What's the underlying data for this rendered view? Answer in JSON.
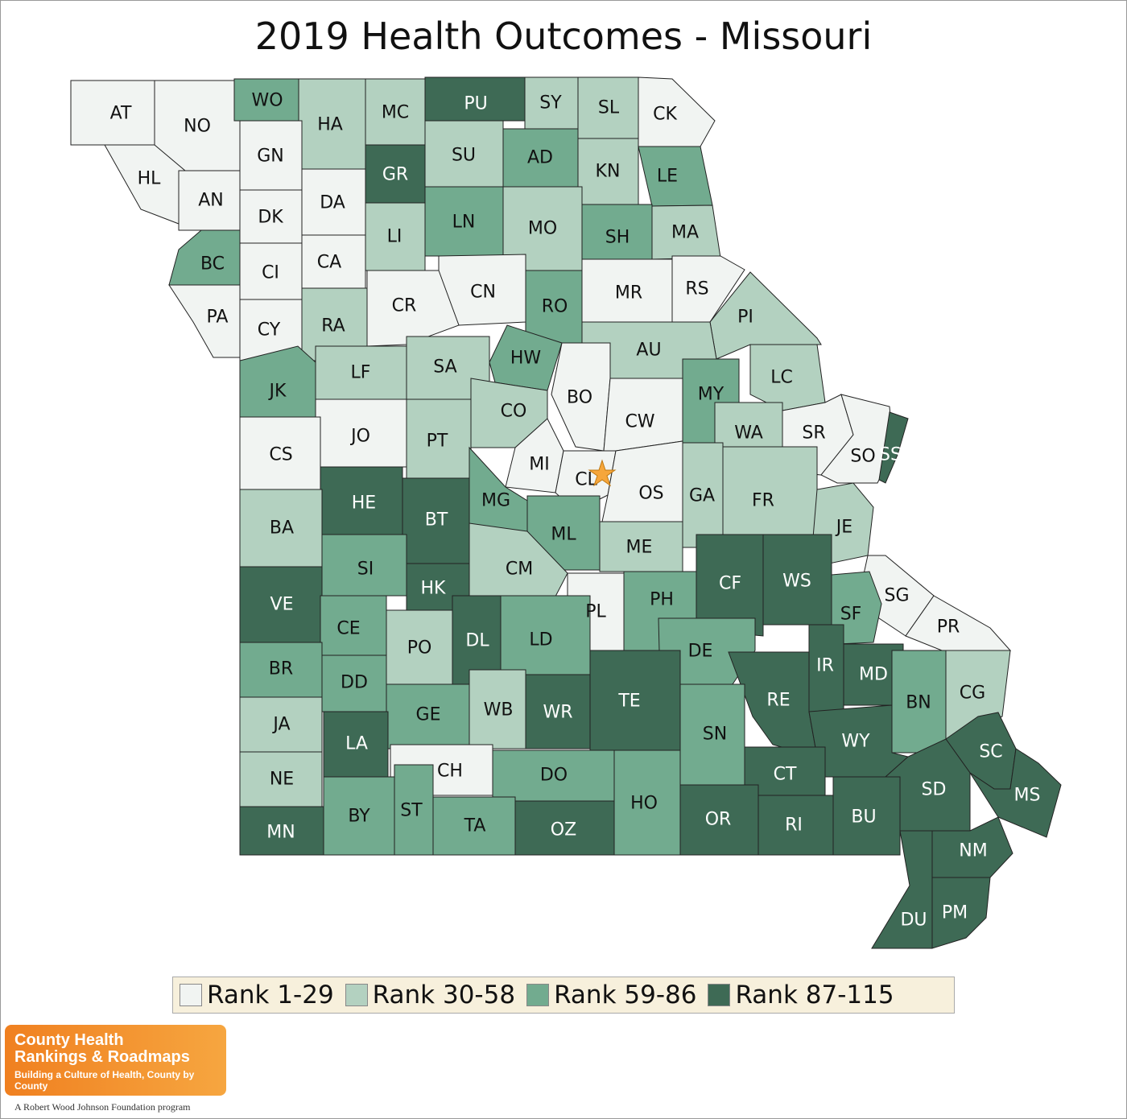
{
  "title": "2019 Health Outcomes - Missouri",
  "colors": {
    "rank_1_29": "#f1f4f2",
    "rank_30_58": "#b3d1c0",
    "rank_59_86": "#72ab8f",
    "rank_87_115": "#3e6a55",
    "star": "#f6a63b",
    "legend_bg": "#f7f0dc",
    "logo_orange": "#f08020"
  },
  "legend": [
    {
      "label": "Rank 1-29",
      "tier": 1
    },
    {
      "label": "Rank 30-58",
      "tier": 2
    },
    {
      "label": "Rank 59-86",
      "tier": 3
    },
    {
      "label": "Rank 87-115",
      "tier": 4
    }
  ],
  "map_data": {
    "region": "Missouri",
    "highlight_marker": "star-icon",
    "highlight_county": "CL",
    "counties": [
      {
        "code": "AT",
        "tier": 1
      },
      {
        "code": "NO",
        "tier": 1
      },
      {
        "code": "WO",
        "tier": 3
      },
      {
        "code": "HA",
        "tier": 2
      },
      {
        "code": "MC",
        "tier": 2
      },
      {
        "code": "PU",
        "tier": 4
      },
      {
        "code": "SY",
        "tier": 2
      },
      {
        "code": "SL",
        "tier": 2
      },
      {
        "code": "CK",
        "tier": 1
      },
      {
        "code": "HL",
        "tier": 1
      },
      {
        "code": "GN",
        "tier": 1
      },
      {
        "code": "GR",
        "tier": 4
      },
      {
        "code": "SU",
        "tier": 2
      },
      {
        "code": "AD",
        "tier": 3
      },
      {
        "code": "KN",
        "tier": 2
      },
      {
        "code": "LE",
        "tier": 3
      },
      {
        "code": "AN",
        "tier": 1
      },
      {
        "code": "DK",
        "tier": 1
      },
      {
        "code": "DA",
        "tier": 1
      },
      {
        "code": "LI",
        "tier": 2
      },
      {
        "code": "LN",
        "tier": 3
      },
      {
        "code": "MO",
        "tier": 2
      },
      {
        "code": "SH",
        "tier": 3
      },
      {
        "code": "MA",
        "tier": 2
      },
      {
        "code": "BC",
        "tier": 3
      },
      {
        "code": "CI",
        "tier": 1
      },
      {
        "code": "CA",
        "tier": 1
      },
      {
        "code": "CN",
        "tier": 1
      },
      {
        "code": "RO",
        "tier": 3
      },
      {
        "code": "MR",
        "tier": 1
      },
      {
        "code": "RS",
        "tier": 1
      },
      {
        "code": "PA",
        "tier": 1
      },
      {
        "code": "CY",
        "tier": 1
      },
      {
        "code": "RA",
        "tier": 2
      },
      {
        "code": "CR",
        "tier": 1
      },
      {
        "code": "PI",
        "tier": 2
      },
      {
        "code": "AU",
        "tier": 2
      },
      {
        "code": "HW",
        "tier": 3
      },
      {
        "code": "SA",
        "tier": 2
      },
      {
        "code": "LF",
        "tier": 2
      },
      {
        "code": "JK",
        "tier": 3
      },
      {
        "code": "LC",
        "tier": 2
      },
      {
        "code": "MY",
        "tier": 3
      },
      {
        "code": "BO",
        "tier": 1
      },
      {
        "code": "CO",
        "tier": 2
      },
      {
        "code": "CW",
        "tier": 1
      },
      {
        "code": "WA",
        "tier": 2
      },
      {
        "code": "SR",
        "tier": 1
      },
      {
        "code": "SO",
        "tier": 1
      },
      {
        "code": "SS",
        "tier": 4
      },
      {
        "code": "JO",
        "tier": 1
      },
      {
        "code": "PT",
        "tier": 2
      },
      {
        "code": "CS",
        "tier": 1
      },
      {
        "code": "MI",
        "tier": 1
      },
      {
        "code": "CL",
        "tier": 1
      },
      {
        "code": "OS",
        "tier": 1
      },
      {
        "code": "GA",
        "tier": 2
      },
      {
        "code": "FR",
        "tier": 2
      },
      {
        "code": "HE",
        "tier": 4
      },
      {
        "code": "BT",
        "tier": 4
      },
      {
        "code": "MG",
        "tier": 3
      },
      {
        "code": "BA",
        "tier": 2
      },
      {
        "code": "ML",
        "tier": 3
      },
      {
        "code": "JE",
        "tier": 2
      },
      {
        "code": "ME",
        "tier": 2
      },
      {
        "code": "SI",
        "tier": 3
      },
      {
        "code": "CM",
        "tier": 2
      },
      {
        "code": "CF",
        "tier": 4
      },
      {
        "code": "WS",
        "tier": 4
      },
      {
        "code": "HK",
        "tier": 4
      },
      {
        "code": "VE",
        "tier": 4
      },
      {
        "code": "SG",
        "tier": 1
      },
      {
        "code": "PH",
        "tier": 3
      },
      {
        "code": "PL",
        "tier": 1
      },
      {
        "code": "SF",
        "tier": 3
      },
      {
        "code": "CE",
        "tier": 3
      },
      {
        "code": "PR",
        "tier": 1
      },
      {
        "code": "DL",
        "tier": 4
      },
      {
        "code": "LD",
        "tier": 3
      },
      {
        "code": "PO",
        "tier": 2
      },
      {
        "code": "DE",
        "tier": 3
      },
      {
        "code": "IR",
        "tier": 4
      },
      {
        "code": "BR",
        "tier": 3
      },
      {
        "code": "MD",
        "tier": 4
      },
      {
        "code": "DD",
        "tier": 3
      },
      {
        "code": "RE",
        "tier": 4
      },
      {
        "code": "CG",
        "tier": 2
      },
      {
        "code": "TE",
        "tier": 4
      },
      {
        "code": "BN",
        "tier": 3
      },
      {
        "code": "JA",
        "tier": 2
      },
      {
        "code": "GE",
        "tier": 3
      },
      {
        "code": "WB",
        "tier": 2
      },
      {
        "code": "WR",
        "tier": 4
      },
      {
        "code": "SN",
        "tier": 3
      },
      {
        "code": "WY",
        "tier": 4
      },
      {
        "code": "LA",
        "tier": 4
      },
      {
        "code": "SC",
        "tier": 4
      },
      {
        "code": "CH",
        "tier": 1
      },
      {
        "code": "CT",
        "tier": 4
      },
      {
        "code": "NE",
        "tier": 2
      },
      {
        "code": "DO",
        "tier": 3
      },
      {
        "code": "SD",
        "tier": 4
      },
      {
        "code": "MS",
        "tier": 4
      },
      {
        "code": "HO",
        "tier": 3
      },
      {
        "code": "BY",
        "tier": 3
      },
      {
        "code": "ST",
        "tier": 3
      },
      {
        "code": "OR",
        "tier": 4
      },
      {
        "code": "RI",
        "tier": 4
      },
      {
        "code": "BU",
        "tier": 4
      },
      {
        "code": "TA",
        "tier": 3
      },
      {
        "code": "OZ",
        "tier": 4
      },
      {
        "code": "MN",
        "tier": 4
      },
      {
        "code": "NM",
        "tier": 4
      },
      {
        "code": "DU",
        "tier": 4
      },
      {
        "code": "PM",
        "tier": 4
      }
    ]
  },
  "logo": {
    "line1": "County Health",
    "line2": "Rankings & Roadmaps",
    "tagline": "Building a Culture of Health, County by County",
    "program": "A Robert Wood Johnson Foundation program"
  }
}
